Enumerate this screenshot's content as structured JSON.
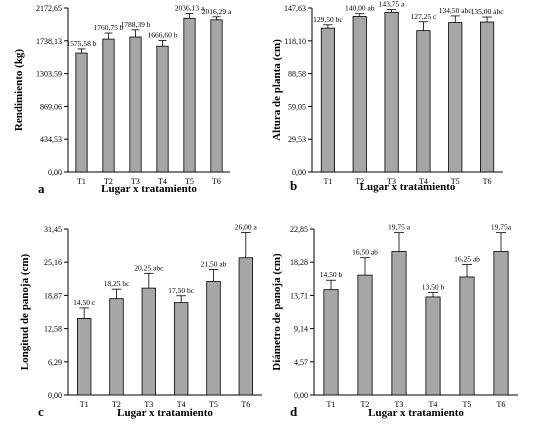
{
  "chart_data": [
    {
      "type": "bar",
      "panel": "a",
      "ylabel": "Rendimiento (kg)",
      "xlabel": "Lugar x tratamiento",
      "categories": [
        "T1",
        "T2",
        "T3",
        "T4",
        "T5",
        "T6"
      ],
      "values": [
        1575.58,
        1760.75,
        1788.39,
        1666.6,
        2036.13,
        2016.29
      ],
      "errors": [
        55,
        80,
        95,
        75,
        65,
        40
      ],
      "value_labels": [
        "1575,58 b",
        "1760,75 b",
        "1788,39 b",
        "1666,60 b",
        "2036,13 a",
        "2016,29 a"
      ],
      "ylim": [
        0,
        2172.65
      ],
      "yticks": [
        0,
        434.53,
        869.06,
        1303.59,
        1738.13,
        2172.65
      ],
      "ytick_labels": [
        "0,00",
        "434,53",
        "869,06",
        "1303,59",
        "1738,13",
        "2172,65"
      ]
    },
    {
      "type": "bar",
      "panel": "b",
      "ylabel": "Altura de planta (cm)",
      "xlabel": "Lugar x tratamiento",
      "categories": [
        "T1",
        "T2",
        "T3",
        "T4",
        "T5",
        "T6"
      ],
      "values": [
        129.5,
        140.0,
        143.75,
        127.25,
        134.5,
        135.0
      ],
      "errors": [
        3,
        2.5,
        2.5,
        8,
        6,
        4.5
      ],
      "value_labels": [
        "129,50 bc",
        "140,00 ab",
        "143,75 a",
        "127,25 c",
        "134,50 abc",
        "135,00 abc"
      ],
      "ylim": [
        0,
        147.63
      ],
      "yticks": [
        0,
        29.53,
        59.05,
        88.58,
        118.1,
        147.63
      ],
      "ytick_labels": [
        "0,00",
        "29,53",
        "59,05",
        "88,58",
        "118,10",
        "147,63"
      ]
    },
    {
      "type": "bar",
      "panel": "c",
      "ylabel": "Longitud de panoja (cm)",
      "xlabel": "Lugar x tratamiento",
      "categories": [
        "T1",
        "T2",
        "T3",
        "T4",
        "T5",
        "T6"
      ],
      "values": [
        14.5,
        18.25,
        20.25,
        17.5,
        21.5,
        26.0
      ],
      "errors": [
        2.0,
        1.8,
        2.8,
        1.3,
        2.3,
        4.8
      ],
      "value_labels": [
        "14,50 c",
        "18,25 bc",
        "20,25 abc",
        "17,50 bc",
        "21,50 ab",
        "26,00 a"
      ],
      "ylim": [
        0,
        31.45
      ],
      "yticks": [
        0,
        6.29,
        12.58,
        18.87,
        25.16,
        31.45
      ],
      "ytick_labels": [
        "0,00",
        "6,29",
        "12,58",
        "18,87",
        "25,16",
        "31,45"
      ]
    },
    {
      "type": "bar",
      "panel": "d",
      "ylabel": "Diámetro de panoja (cm)",
      "xlabel": "Lugar x tratamiento",
      "categories": [
        "T1",
        "T2",
        "T3",
        "T4",
        "T5",
        "T6"
      ],
      "values": [
        14.5,
        16.5,
        19.75,
        13.5,
        16.25,
        19.75
      ],
      "errors": [
        1.3,
        2.4,
        2.6,
        0.6,
        1.7,
        2.6
      ],
      "value_labels": [
        "14,50 b",
        "16,50 ab",
        "19,75 a",
        "13,50 b",
        "16,25 ab",
        "19,75a"
      ],
      "ylim": [
        0,
        22.85
      ],
      "yticks": [
        0,
        4.57,
        9.14,
        13.71,
        18.28,
        22.85
      ],
      "ytick_labels": [
        "0,00",
        "4,57",
        "9,14",
        "13,71",
        "18,28",
        "22,85"
      ]
    }
  ]
}
